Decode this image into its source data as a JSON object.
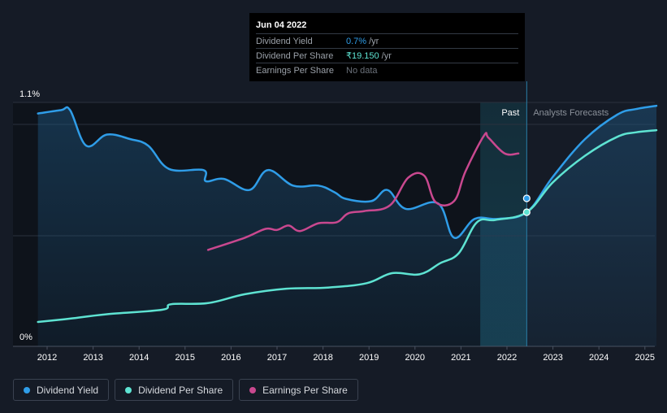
{
  "tooltip": {
    "date": "Jun 04 2022",
    "rows": [
      {
        "label": "Dividend Yield",
        "value": "0.7%",
        "unit": "/yr"
      },
      {
        "label": "Dividend Per Share",
        "value": "₹19.150",
        "unit": "/yr"
      },
      {
        "label": "Earnings Per Share",
        "value": "No data",
        "unit": ""
      }
    ]
  },
  "legend": {
    "dividend_yield": "Dividend Yield",
    "dividend_per_share": "Dividend Per Share",
    "earnings_per_share": "Earnings Per Share"
  },
  "colors": {
    "background": "#151b26",
    "dividend_yield": "#2f9de8",
    "dividend_per_share": "#5ee3d2",
    "earnings_per_share": "#c9488f"
  },
  "chart_data": {
    "type": "line",
    "title": "",
    "x_unit": "year",
    "xlim": [
      2011.55,
      2025.28
    ],
    "ylim": [
      0,
      1.1
    ],
    "y_unit": "%",
    "y_tick_labels": [
      "1.1%",
      "0%"
    ],
    "x_tick_labels": [
      "2012",
      "2013",
      "2014",
      "2015",
      "2016",
      "2017",
      "2018",
      "2019",
      "2020",
      "2021",
      "2022",
      "2023",
      "2024",
      "2025"
    ],
    "past_label": "Past",
    "forecast_label": "Analysts Forecasts",
    "past_band_start": 2021.42,
    "divider_x": 2022.43,
    "series": [
      {
        "name": "Dividend Yield",
        "points": [
          [
            2011.8,
            1.05
          ],
          [
            2012.3,
            1.065
          ],
          [
            2012.5,
            1.065
          ],
          [
            2012.85,
            0.905
          ],
          [
            2013.3,
            0.955
          ],
          [
            2013.8,
            0.935
          ],
          [
            2014.2,
            0.905
          ],
          [
            2014.65,
            0.8
          ],
          [
            2015.4,
            0.795
          ],
          [
            2015.45,
            0.745
          ],
          [
            2015.85,
            0.755
          ],
          [
            2016.4,
            0.705
          ],
          [
            2016.8,
            0.795
          ],
          [
            2017.35,
            0.725
          ],
          [
            2017.9,
            0.725
          ],
          [
            2018.25,
            0.695
          ],
          [
            2018.5,
            0.665
          ],
          [
            2019.05,
            0.655
          ],
          [
            2019.4,
            0.705
          ],
          [
            2019.8,
            0.62
          ],
          [
            2020.5,
            0.645
          ],
          [
            2020.85,
            0.49
          ],
          [
            2021.3,
            0.575
          ],
          [
            2021.8,
            0.575
          ],
          [
            2022.43,
            0.605
          ],
          [
            2023.0,
            0.765
          ],
          [
            2023.7,
            0.935
          ],
          [
            2024.4,
            1.045
          ],
          [
            2024.8,
            1.07
          ],
          [
            2025.25,
            1.085
          ]
        ]
      },
      {
        "name": "Dividend Per Share",
        "points": [
          [
            2011.8,
            0.11
          ],
          [
            2012.5,
            0.125
          ],
          [
            2013.3,
            0.145
          ],
          [
            2014.5,
            0.165
          ],
          [
            2014.7,
            0.19
          ],
          [
            2015.5,
            0.195
          ],
          [
            2016.3,
            0.235
          ],
          [
            2017.2,
            0.26
          ],
          [
            2018.1,
            0.265
          ],
          [
            2018.95,
            0.285
          ],
          [
            2019.5,
            0.33
          ],
          [
            2020.1,
            0.325
          ],
          [
            2020.55,
            0.375
          ],
          [
            2020.95,
            0.42
          ],
          [
            2021.35,
            0.56
          ],
          [
            2021.75,
            0.57
          ],
          [
            2022.43,
            0.605
          ],
          [
            2023.0,
            0.74
          ],
          [
            2023.7,
            0.86
          ],
          [
            2024.4,
            0.945
          ],
          [
            2024.8,
            0.965
          ],
          [
            2025.25,
            0.975
          ]
        ]
      },
      {
        "name": "Earnings Per Share",
        "points": [
          [
            2015.5,
            0.435
          ],
          [
            2016.3,
            0.49
          ],
          [
            2016.75,
            0.53
          ],
          [
            2017.0,
            0.525
          ],
          [
            2017.25,
            0.545
          ],
          [
            2017.5,
            0.52
          ],
          [
            2017.9,
            0.555
          ],
          [
            2018.3,
            0.56
          ],
          [
            2018.55,
            0.6
          ],
          [
            2018.9,
            0.61
          ],
          [
            2019.45,
            0.635
          ],
          [
            2019.85,
            0.76
          ],
          [
            2020.2,
            0.77
          ],
          [
            2020.45,
            0.65
          ],
          [
            2020.85,
            0.655
          ],
          [
            2021.1,
            0.79
          ],
          [
            2021.5,
            0.95
          ],
          [
            2021.6,
            0.94
          ],
          [
            2021.95,
            0.87
          ],
          [
            2022.25,
            0.87
          ]
        ]
      }
    ]
  }
}
